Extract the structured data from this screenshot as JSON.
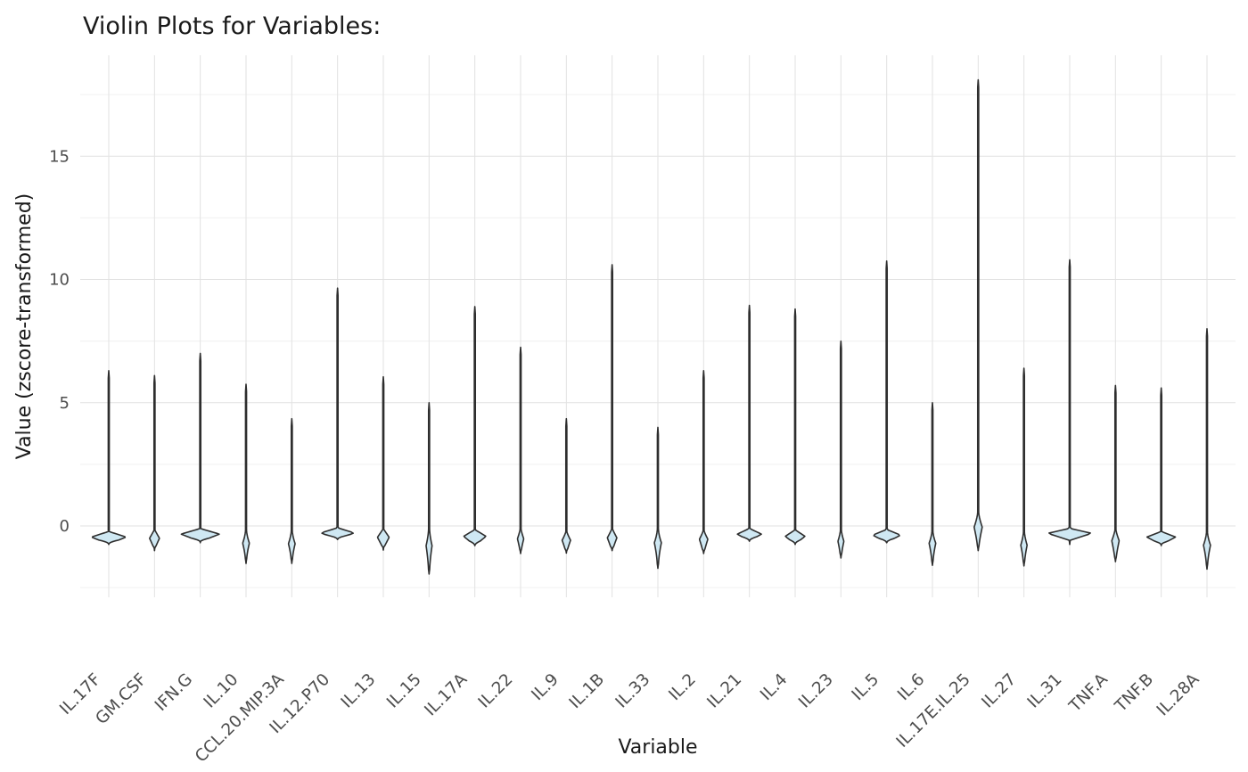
{
  "page": {
    "title": "Violin Plots for Variables:"
  },
  "chart_data": {
    "type": "violin",
    "title": "Violin Plots for Variables:",
    "xlabel": "Variable",
    "ylabel": "Value (zscore-transformed)",
    "legend": "none",
    "grid": "on",
    "y_major_ticks": [
      0,
      5,
      10,
      15
    ],
    "y_minor_ticks": [
      -2.5,
      2.5,
      7.5,
      12.5,
      17.5
    ],
    "ylim": [
      -2.95,
      19.1
    ],
    "categories": [
      "IL.17F",
      "GM.CSF",
      "IFN.G",
      "IL.10",
      "CCL.20.MIP.3A",
      "IL.12.P70",
      "IL.13",
      "IL.15",
      "IL.17A",
      "IL.22",
      "IL.9",
      "IL.1B",
      "IL.33",
      "IL.2",
      "IL.21",
      "IL.4",
      "IL.23",
      "IL.5",
      "IL.6",
      "IL.17E.IL.25",
      "IL.27",
      "IL.31",
      "TNF.A",
      "TNF.B",
      "IL.28A"
    ],
    "violins": [
      {
        "label": "IL.17F",
        "max": 6.3,
        "min": -0.75,
        "mode": -0.45,
        "w": 19,
        "eu": 0.22,
        "ed": 0.28,
        "k": 1
      },
      {
        "label": "GM.CSF",
        "max": 6.1,
        "min": -1.0,
        "mode": -0.5,
        "w": 5,
        "eu": 0.32,
        "ed": 0.4,
        "k": 1
      },
      {
        "label": "IFN.G",
        "max": 7.0,
        "min": -0.68,
        "mode": -0.33,
        "w": 21,
        "eu": 0.22,
        "ed": 0.3,
        "k": 1
      },
      {
        "label": "IL.10",
        "max": 5.75,
        "min": -1.52,
        "mode": -0.7,
        "w": 3.2,
        "eu": 0.55,
        "ed": 0.75,
        "k": 1.6
      },
      {
        "label": "CCL.20.MIP.3A",
        "max": 4.35,
        "min": -1.52,
        "mode": -0.72,
        "w": 3.2,
        "eu": 0.55,
        "ed": 0.75,
        "k": 1.6
      },
      {
        "label": "IL.12.P70",
        "max": 9.65,
        "min": -0.55,
        "mode": -0.28,
        "w": 18,
        "eu": 0.2,
        "ed": 0.26,
        "k": 1
      },
      {
        "label": "IL.13",
        "max": 6.05,
        "min": -0.98,
        "mode": -0.46,
        "w": 6,
        "eu": 0.32,
        "ed": 0.42,
        "k": 1
      },
      {
        "label": "IL.15",
        "max": 5.0,
        "min": -1.95,
        "mode": -0.8,
        "w": 2.8,
        "eu": 0.7,
        "ed": 1.1,
        "k": 1.6
      },
      {
        "label": "IL.17A",
        "max": 8.9,
        "min": -0.8,
        "mode": -0.42,
        "w": 12,
        "eu": 0.26,
        "ed": 0.36,
        "k": 1
      },
      {
        "label": "IL.22",
        "max": 7.25,
        "min": -1.12,
        "mode": -0.52,
        "w": 3,
        "eu": 0.4,
        "ed": 0.55,
        "k": 1.3
      },
      {
        "label": "IL.9",
        "max": 4.35,
        "min": -1.1,
        "mode": -0.58,
        "w": 4.2,
        "eu": 0.35,
        "ed": 0.5,
        "k": 1.2
      },
      {
        "label": "IL.1B",
        "max": 10.6,
        "min": -1.0,
        "mode": -0.48,
        "w": 4.8,
        "eu": 0.35,
        "ed": 0.5,
        "k": 1.1
      },
      {
        "label": "IL.33",
        "max": 4.0,
        "min": -1.72,
        "mode": -0.68,
        "w": 3.4,
        "eu": 0.6,
        "ed": 1.0,
        "k": 1.7
      },
      {
        "label": "IL.2",
        "max": 6.3,
        "min": -1.12,
        "mode": -0.54,
        "w": 4.2,
        "eu": 0.35,
        "ed": 0.55,
        "k": 1.2
      },
      {
        "label": "IL.21",
        "max": 8.95,
        "min": -0.62,
        "mode": -0.33,
        "w": 13,
        "eu": 0.22,
        "ed": 0.27,
        "k": 1
      },
      {
        "label": "IL.4",
        "max": 8.8,
        "min": -0.75,
        "mode": -0.42,
        "w": 10.5,
        "eu": 0.25,
        "ed": 0.3,
        "k": 1
      },
      {
        "label": "IL.23",
        "max": 7.5,
        "min": -1.3,
        "mode": -0.62,
        "w": 2.8,
        "eu": 0.45,
        "ed": 0.65,
        "k": 1.4
      },
      {
        "label": "IL.5",
        "max": 10.75,
        "min": -0.68,
        "mode": -0.37,
        "w": 15,
        "eu": 0.22,
        "ed": 0.3,
        "k": 1
      },
      {
        "label": "IL.6",
        "max": 5.0,
        "min": -1.6,
        "mode": -0.7,
        "w": 3.2,
        "eu": 0.5,
        "ed": 0.85,
        "k": 1.6
      },
      {
        "label": "IL.17E.IL.25",
        "max": 18.1,
        "min": -1.0,
        "mode": -0.05,
        "w": 4,
        "eu": 0.6,
        "ed": 0.9,
        "k": 1.4
      },
      {
        "label": "IL.27",
        "max": 6.4,
        "min": -1.62,
        "mode": -0.78,
        "w": 3,
        "eu": 0.55,
        "ed": 0.8,
        "k": 1.5
      },
      {
        "label": "IL.31",
        "max": 10.8,
        "min": -0.75,
        "mode": -0.3,
        "w": 24,
        "eu": 0.2,
        "ed": 0.28,
        "k": 1
      },
      {
        "label": "TNF.A",
        "max": 5.7,
        "min": -1.45,
        "mode": -0.6,
        "w": 3.6,
        "eu": 0.45,
        "ed": 0.8,
        "k": 1.3
      },
      {
        "label": "TNF.B",
        "max": 5.6,
        "min": -0.8,
        "mode": -0.45,
        "w": 15.5,
        "eu": 0.22,
        "ed": 0.3,
        "k": 1
      },
      {
        "label": "IL.28A",
        "max": 8.0,
        "min": -1.75,
        "mode": -0.78,
        "w": 3.4,
        "eu": 0.55,
        "ed": 0.9,
        "k": 1.6
      }
    ],
    "colors": {
      "background": "#ffffff",
      "violin_fill": "#cfe8f3",
      "violin_stroke": "#2e2e2e",
      "grid_major": "#e2e2e2",
      "grid_minor": "#f0f0f0",
      "title_text": "#1a1a1a",
      "axis_title_text": "#1a1a1a",
      "tick_text": "#4d4d4d"
    }
  }
}
